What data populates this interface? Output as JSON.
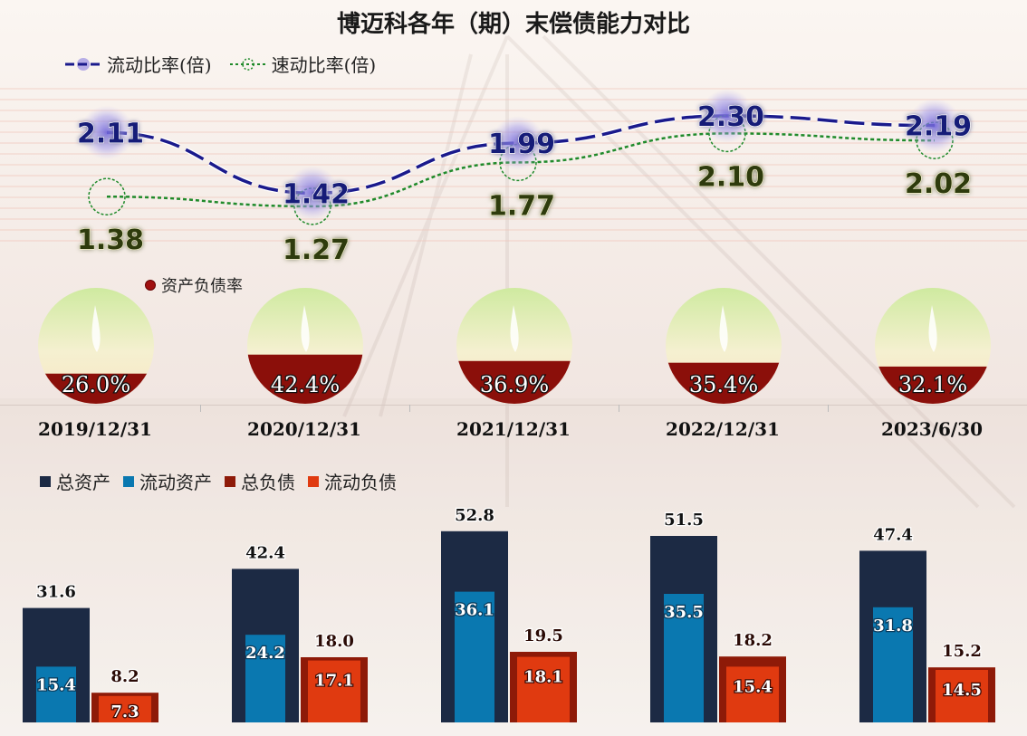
{
  "chart_data": [
    {
      "type": "line",
      "title": "博迈科各年（期）末偿债能力对比",
      "categories": [
        "2019/12/31",
        "2020/12/31",
        "2021/12/31",
        "2022/12/31",
        "2023/6/30"
      ],
      "series": [
        {
          "name": "流动比率(倍)",
          "values": [
            2.11,
            1.42,
            1.99,
            2.3,
            2.19
          ],
          "color": "#1a1a8c"
        },
        {
          "name": "速动比率(倍)",
          "values": [
            1.38,
            1.27,
            1.77,
            2.1,
            2.02
          ],
          "color": "#1f8a2a"
        }
      ],
      "labels": {
        "current": [
          "2.11",
          "1.42",
          "1.99",
          "2.30",
          "2.19"
        ],
        "quick": [
          "1.38",
          "1.27",
          "1.77",
          "2.10",
          "2.02"
        ]
      }
    },
    {
      "type": "pie",
      "legend": "资产负债率",
      "categories": [
        "2019/12/31",
        "2020/12/31",
        "2021/12/31",
        "2022/12/31",
        "2023/6/30"
      ],
      "values": [
        26.0,
        42.4,
        36.9,
        35.4,
        32.1
      ],
      "labels": [
        "26.0%",
        "42.4%",
        "36.9%",
        "35.4%",
        "32.1%"
      ],
      "color": "#8b0f0a"
    },
    {
      "type": "bar",
      "categories": [
        "2019/12/31",
        "2020/12/31",
        "2021/12/31",
        "2022/12/31",
        "2023/6/30"
      ],
      "series": [
        {
          "name": "总资产",
          "values": [
            31.6,
            42.4,
            52.8,
            51.5,
            47.4
          ],
          "labels": [
            "31.6",
            "42.4",
            "52.8",
            "51.5",
            "47.4"
          ],
          "color": "#1c2a44"
        },
        {
          "name": "流动资产",
          "values": [
            15.4,
            24.2,
            36.1,
            35.5,
            31.8
          ],
          "labels": [
            "15.4",
            "24.2",
            "36.1",
            "35.5",
            "31.8"
          ],
          "color": "#0a78b0"
        },
        {
          "name": "总负债",
          "values": [
            8.2,
            18.0,
            19.5,
            18.2,
            15.2
          ],
          "labels": [
            "8.2",
            "18.0",
            "19.5",
            "18.2",
            "15.2"
          ],
          "color": "#8e1a08"
        },
        {
          "name": "流动负债",
          "values": [
            7.3,
            17.1,
            18.1,
            15.4,
            14.5
          ],
          "labels": [
            "7.3",
            "17.1",
            "18.1",
            "15.4",
            "14.5"
          ],
          "color": "#e03a10"
        }
      ]
    }
  ]
}
